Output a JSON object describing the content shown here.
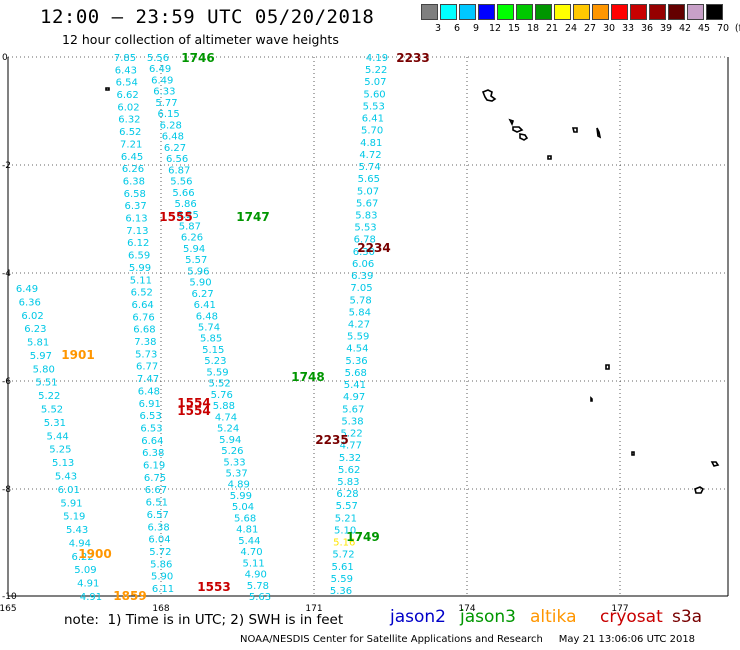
{
  "title": "12:00 – 23:59 UTC 05/20/2018",
  "subtitle": "12 hour collection of altimeter wave heights",
  "legend": {
    "unit": "(ft)",
    "bins": [
      {
        "label": "3",
        "color": "#7f7f7f"
      },
      {
        "label": "6",
        "color": "#00ffff"
      },
      {
        "label": "9",
        "color": "#00c8ff"
      },
      {
        "label": "12",
        "color": "#0000ff"
      },
      {
        "label": "15",
        "color": "#00ff00"
      },
      {
        "label": "18",
        "color": "#00c800"
      },
      {
        "label": "21",
        "color": "#009600"
      },
      {
        "label": "24",
        "color": "#ffff00"
      },
      {
        "label": "27",
        "color": "#ffc800"
      },
      {
        "label": "30",
        "color": "#ff9600"
      },
      {
        "label": "33",
        "color": "#ff0000"
      },
      {
        "label": "36",
        "color": "#c80000"
      },
      {
        "label": "39",
        "color": "#960000"
      },
      {
        "label": "42",
        "color": "#640000"
      },
      {
        "label": "45",
        "color": "#c8a0c8"
      },
      {
        "label": "70",
        "color": "#000000"
      }
    ]
  },
  "axes": {
    "x_ticks": [
      "165",
      "168",
      "171",
      "174",
      "177"
    ],
    "y_ticks": [
      "0",
      "-2",
      "-4",
      "-6",
      "-8",
      "-10"
    ]
  },
  "track_colors": {
    "jason3": "#009600",
    "cryosat": "#c80000",
    "s3a": "#780000",
    "altika": "#ff9600",
    "swh": "#00c8e6",
    "swh_yellow": "#ffe600"
  },
  "tracks": [
    {
      "id": "A",
      "values": [
        "7.85",
        "6.43",
        "6.54",
        "6.62",
        "6.02",
        "6.32",
        "6.52",
        "7.21",
        "6.45",
        "6.26",
        "6.38",
        "6.58",
        "6.37",
        "6.13",
        "7.13",
        "6.12",
        "6.59",
        "5.99",
        "5.11",
        "6.52",
        "6.64",
        "6.76",
        "6.68",
        "7.38",
        "5.73",
        "6.77",
        "7.47",
        "6.48",
        "6.91",
        "6.53",
        "6.53",
        "6.64",
        "6.38",
        "6.19",
        "6.75",
        "6.67",
        "6.51",
        "6.57",
        "6.38",
        "6.04",
        "5.72",
        "5.86",
        "5.90",
        "6.11"
      ]
    },
    {
      "id": "B",
      "values": [
        "5.56",
        "6.49",
        "6.49",
        "6.33",
        "5.77",
        "6.15",
        "6.28",
        "6.48",
        "6.27",
        "6.56",
        "6.87",
        "5.56",
        "5.66",
        "5.86",
        "6.25",
        "5.87",
        "6.26",
        "5.94",
        "5.57",
        "5.96",
        "5.90",
        "6.27",
        "6.41",
        "6.48",
        "5.74",
        "5.85",
        "5.15",
        "5.23",
        "5.59",
        "5.52",
        "5.76",
        "5.88",
        "4.74",
        "5.24",
        "5.94",
        "5.26",
        "5.33",
        "5.37",
        "4.89",
        "5.99",
        "5.04",
        "5.68",
        "4.81",
        "5.44",
        "4.70",
        "5.11",
        "4.90",
        "5.78",
        "5.63"
      ]
    },
    {
      "id": "C",
      "values": [
        "4.19",
        "5.22",
        "5.07",
        "5.60",
        "5.53",
        "6.41",
        "5.70",
        "4.81",
        "4.72",
        "5.74",
        "5.65",
        "5.07",
        "5.67",
        "5.83",
        "5.53",
        "6.78",
        "6.30",
        "6.06",
        "6.39",
        "7.05",
        "5.78",
        "5.84",
        "4.27",
        "5.59",
        "4.54",
        "5.36",
        "5.68",
        "5.41",
        "4.97",
        "5.67",
        "5.38",
        "5.22",
        "4.77",
        "5.32",
        "5.62",
        "5.83",
        "6.28",
        "5.57",
        "5.21",
        "5.10",
        "5.16",
        "5.72",
        "5.61",
        "5.59",
        "5.36"
      ]
    },
    {
      "id": "D",
      "values": [
        "6.49",
        "6.36",
        "6.02",
        "6.23",
        "5.81",
        "5.97",
        "5.80",
        "5.51",
        "5.22",
        "5.52",
        "5.31",
        "5.44",
        "5.25",
        "5.13",
        "5.43",
        "6.01",
        "5.91",
        "5.19",
        "5.43",
        "4.94",
        "6.22",
        "5.09",
        "4.91",
        "4.91"
      ]
    }
  ],
  "time_labels": [
    {
      "text": "1746",
      "color_key": "jason3"
    },
    {
      "text": "2233",
      "color_key": "s3a"
    },
    {
      "text": "1555",
      "color_key": "cryosat"
    },
    {
      "text": "1747",
      "color_key": "jason3"
    },
    {
      "text": "2234",
      "color_key": "s3a"
    },
    {
      "text": "1901",
      "color_key": "altika"
    },
    {
      "text": "1748",
      "color_key": "jason3"
    },
    {
      "text": "1554",
      "color_key": "cryosat"
    },
    {
      "text": "1554",
      "color_key": "cryosat"
    },
    {
      "text": "2235",
      "color_key": "s3a"
    },
    {
      "text": "1749",
      "color_key": "jason3"
    },
    {
      "text": "1900",
      "color_key": "altika"
    },
    {
      "text": "1553",
      "color_key": "cryosat"
    },
    {
      "text": "1859",
      "color_key": "altika"
    }
  ],
  "note": "note:  1) Time is in UTC; 2) SWH is in feet",
  "satellites": [
    {
      "name": "jason2",
      "color": "#0000c8"
    },
    {
      "name": "jason3",
      "color": "#009600"
    },
    {
      "name": "altika",
      "color": "#ff9600"
    },
    {
      "name": "cryosat",
      "color": "#c80000"
    },
    {
      "name": "s3a",
      "color": "#780000"
    }
  ],
  "credits": "NOAA/NESDIS Center for Satellite Applications and Research     May 21 13:06:06 UTC 2018"
}
